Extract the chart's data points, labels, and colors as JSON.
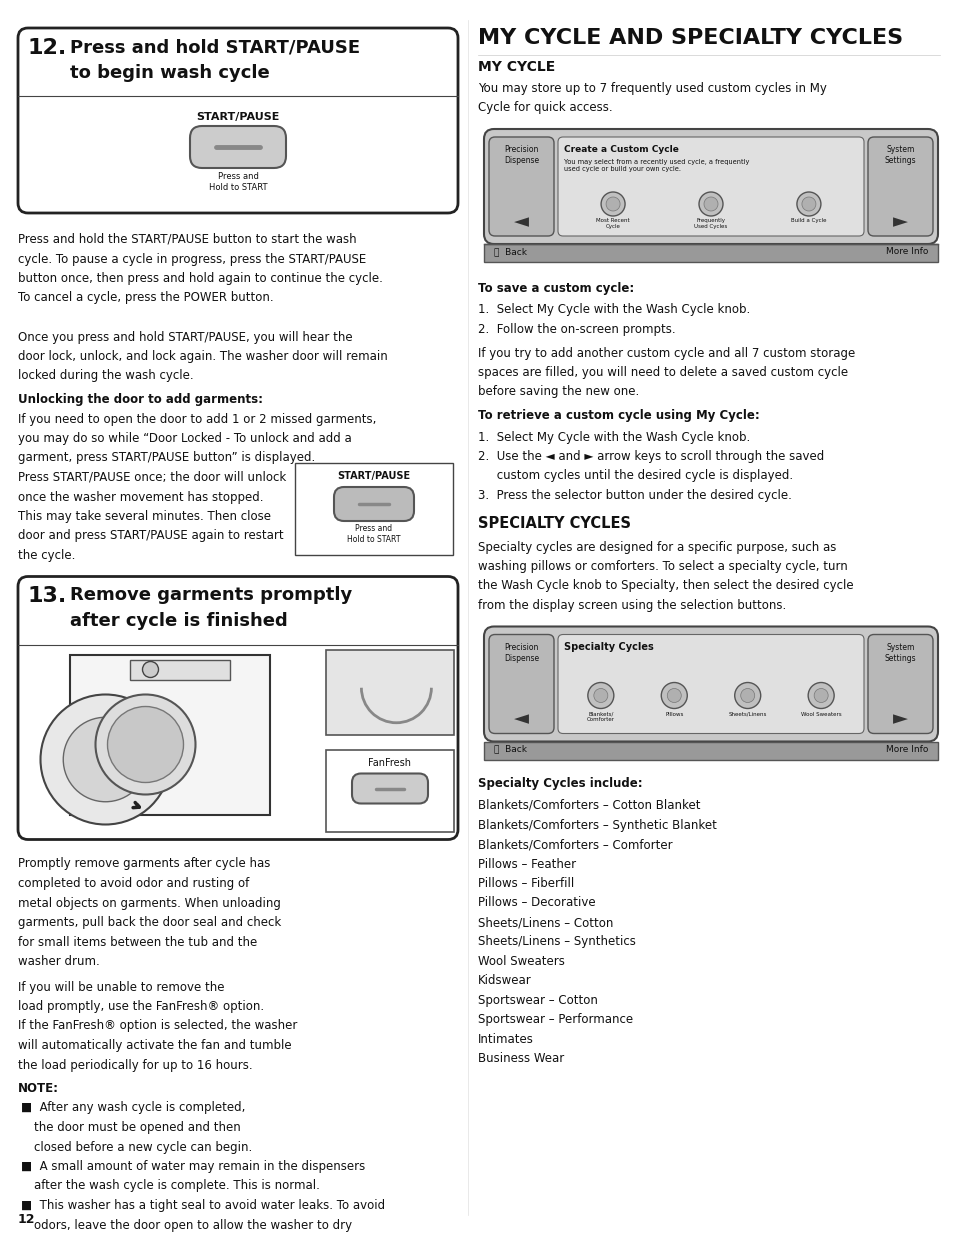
{
  "page_bg": "#ffffff",
  "box12_title_num": "12.",
  "box12_title_text": "Press and hold START/PAUSE\n      to begin wash cycle",
  "box12_body": [
    "Press and hold the START/PAUSE button to start the wash",
    "cycle. To pause a cycle in progress, press the START/PAUSE",
    "button once, then press and hold again to continue the cycle.",
    "To cancel a cycle, press the POWER button.",
    "",
    "Once you press and hold START/PAUSE, you will hear the",
    "door lock, unlock, and lock again. The washer door will remain",
    "locked during the wash cycle."
  ],
  "unlocking_header": "Unlocking the door to add garments:",
  "unlocking_body_left": [
    "If you need to open the door to add 1 or 2 missed garments,",
    "you may do so while “Door Locked - To unlock and add a",
    "garment, press START/PAUSE button” is displayed.",
    "Press START/PAUSE once; the door will unlock",
    "once the washer movement has stopped.",
    "This may take several minutes. Then close",
    "door and press START/PAUSE again to restart",
    "the cycle."
  ],
  "box13_title_num": "13.",
  "box13_title_text": "Remove garments promptly\n      after cycle is finished",
  "box13_body1": [
    "Promptly remove garments after cycle has",
    "completed to avoid odor and rusting of",
    "metal objects on garments. When unloading",
    "garments, pull back the door seal and check",
    "for small items between the tub and the",
    "washer drum."
  ],
  "box13_body2": [
    "If you will be unable to remove the",
    "load promptly, use the FanFresh® option.",
    "If the FanFresh® option is selected, the washer",
    "will automatically activate the fan and tumble",
    "the load periodically for up to 16 hours."
  ],
  "note_header": "NOTE:",
  "note_bullets": [
    "After any wash cycle is completed,\nthe door must be opened and then\nclosed before a new cycle can begin.",
    "A small amount of water may remain in the dispensers\nafter the wash cycle is complete. This is normal.",
    "This washer has a tight seal to avoid water leaks. To avoid\nodors, leave the door open to allow the washer to dry\nbetween uses."
  ],
  "page_number": "12",
  "right_main_title": "MY CYCLE AND SPECIALTY CYCLES",
  "my_cycle_header": "MY CYCLE",
  "my_cycle_body": [
    "You may store up to 7 frequently used custom cycles in My",
    "Cycle for quick access."
  ],
  "save_header": "To save a custom cycle:",
  "save_steps": [
    "1.  Select My Cycle with the Wash Cycle knob.",
    "2.  Follow the on-screen prompts."
  ],
  "save_note": [
    "If you try to add another custom cycle and all 7 custom storage",
    "spaces are filled, you will need to delete a saved custom cycle",
    "before saving the new one."
  ],
  "retrieve_header": "To retrieve a custom cycle using My Cycle:",
  "retrieve_steps": [
    "1.  Select My Cycle with the Wash Cycle knob.",
    "2.  Use the ◄ and ► arrow keys to scroll through the saved",
    "     custom cycles until the desired cycle is displayed.",
    "3.  Press the selector button under the desired cycle."
  ],
  "specialty_header": "SPECIALTY CYCLES",
  "specialty_body": [
    "Specialty cycles are designed for a specific purpose, such as",
    "washing pillows or comforters. To select a specialty cycle, turn",
    "the Wash Cycle knob to Specialty, then select the desired cycle",
    "from the display screen using the selection buttons."
  ],
  "specialty_include_header": "Specialty Cycles include:",
  "specialty_list": [
    "Blankets/Comforters – Cotton Blanket",
    "Blankets/Comforters – Synthetic Blanket",
    "Blankets/Comforters – Comforter",
    "Pillows – Feather",
    "Pillows – Fiberfill",
    "Pillows – Decorative",
    "Sheets/Linens – Cotton",
    "Sheets/Linens – Synthetics",
    "Wool Sweaters",
    "Kidswear",
    "Sportswear – Cotton",
    "Sportswear – Performance",
    "Intimates",
    "Business Wear"
  ]
}
